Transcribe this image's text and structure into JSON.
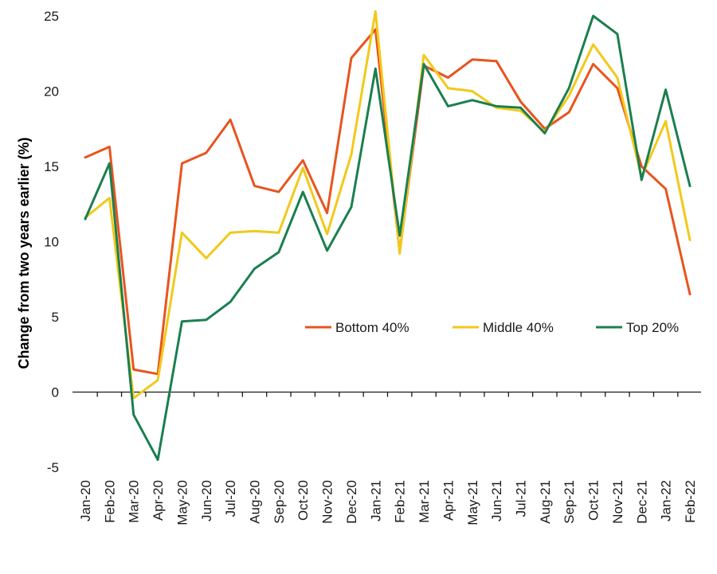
{
  "chart_data": {
    "type": "line",
    "title": "",
    "xlabel": "",
    "ylabel": "Change from two years earlier (%)",
    "ylim": [
      -5,
      25
    ],
    "yticks": [
      -5,
      0,
      5,
      10,
      15,
      20,
      25
    ],
    "grid": false,
    "legend_position": "center-right",
    "categories": [
      "Jan-20",
      "Feb-20",
      "Mar-20",
      "Apr-20",
      "May-20",
      "Jun-20",
      "Jul-20",
      "Aug-20",
      "Sep-20",
      "Oct-20",
      "Nov-20",
      "Dec-20",
      "Jan-21",
      "Feb-21",
      "Mar-21",
      "Apr-21",
      "May-21",
      "Jun-21",
      "Jul-21",
      "Aug-21",
      "Sep-21",
      "Oct-21",
      "Nov-21",
      "Dec-21",
      "Jan-22",
      "Feb-22"
    ],
    "series": [
      {
        "name": "Bottom 40%",
        "color": "#e8541e",
        "values": [
          15.6,
          16.3,
          1.5,
          1.2,
          15.2,
          15.9,
          18.1,
          13.7,
          13.3,
          15.4,
          11.9,
          22.2,
          24.1,
          9.3,
          21.7,
          20.9,
          22.1,
          22.0,
          19.3,
          17.5,
          18.6,
          21.8,
          20.2,
          15.0,
          13.5,
          6.5
        ]
      },
      {
        "name": "Middle 40%",
        "color": "#f2c91a",
        "values": [
          11.6,
          12.9,
          -0.4,
          0.8,
          10.6,
          8.9,
          10.6,
          10.7,
          10.6,
          14.9,
          10.5,
          15.8,
          25.3,
          9.2,
          22.4,
          20.2,
          20.0,
          18.9,
          18.7,
          17.3,
          19.7,
          23.1,
          20.9,
          14.3,
          18.0,
          10.1
        ]
      },
      {
        "name": "Top 20%",
        "color": "#1b7f4f",
        "values": [
          11.5,
          15.2,
          -1.5,
          -4.5,
          4.7,
          4.8,
          6.0,
          8.2,
          9.3,
          13.3,
          9.4,
          12.3,
          21.5,
          10.4,
          21.8,
          19.0,
          19.4,
          19.0,
          18.9,
          17.2,
          20.2,
          25.0,
          23.8,
          14.1,
          20.1,
          13.7
        ]
      }
    ]
  }
}
